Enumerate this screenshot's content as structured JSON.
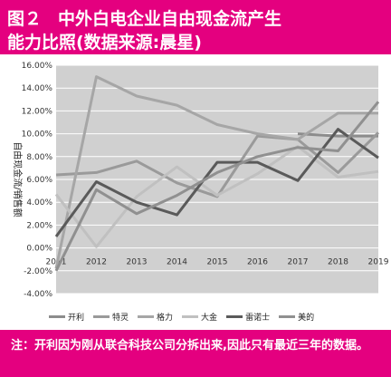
{
  "header": {
    "figure_no": "图２",
    "title_line1": "中外白电企业自由现金流产生",
    "title_line2": "能力比照(数据来源:晨星)"
  },
  "footer": {
    "note": "注：开利因为刚从联合科技公司分拆出来,因此只有最近三年的数据。"
  },
  "colors": {
    "accent": "#e4007f",
    "plot_bg": "#d0d0d0",
    "grid": "#ffffff"
  },
  "chart_data": {
    "type": "line",
    "title": "",
    "xlabel": "",
    "ylabel": "自由现金流/销售额",
    "x": [
      "2011",
      "2012",
      "2013",
      "2014",
      "2015",
      "2016",
      "2017",
      "2018",
      "2019"
    ],
    "y_ticks": [
      "16.00%",
      "14.00%",
      "12.00%",
      "10.00%",
      "8.00%",
      "6.00%",
      "4.00%",
      "2.00%",
      "0.00%",
      "-2.00%",
      "-4.00%"
    ],
    "ylim": [
      -4,
      16
    ],
    "grid": true,
    "legend_position": "bottom",
    "series": [
      {
        "name": "开利",
        "color": "#8c8c8c",
        "values": [
          null,
          null,
          null,
          null,
          null,
          null,
          10.0,
          9.8,
          9.8
        ]
      },
      {
        "name": "特灵",
        "color": "#9a9a9a",
        "values": [
          6.4,
          6.6,
          7.6,
          5.7,
          4.5,
          9.8,
          9.5,
          6.6,
          10.1
        ]
      },
      {
        "name": "格力",
        "color": "#a6a6a6",
        "values": [
          -1.8,
          15.0,
          13.3,
          12.5,
          10.8,
          10.0,
          9.5,
          11.8,
          11.8
        ]
      },
      {
        "name": "大金",
        "color": "#c0c0c0",
        "values": [
          4.7,
          0.1,
          4.5,
          7.1,
          4.6,
          6.5,
          8.9,
          6.2,
          6.7
        ]
      },
      {
        "name": "雷诺士",
        "color": "#5a5a5a",
        "values": [
          1.0,
          5.8,
          4.0,
          2.9,
          7.5,
          7.5,
          5.9,
          10.4,
          7.9
        ]
      },
      {
        "name": "美的",
        "color": "#909090",
        "values": [
          -2.0,
          5.1,
          3.0,
          4.6,
          6.6,
          8.0,
          8.8,
          8.5,
          12.8
        ]
      }
    ]
  }
}
